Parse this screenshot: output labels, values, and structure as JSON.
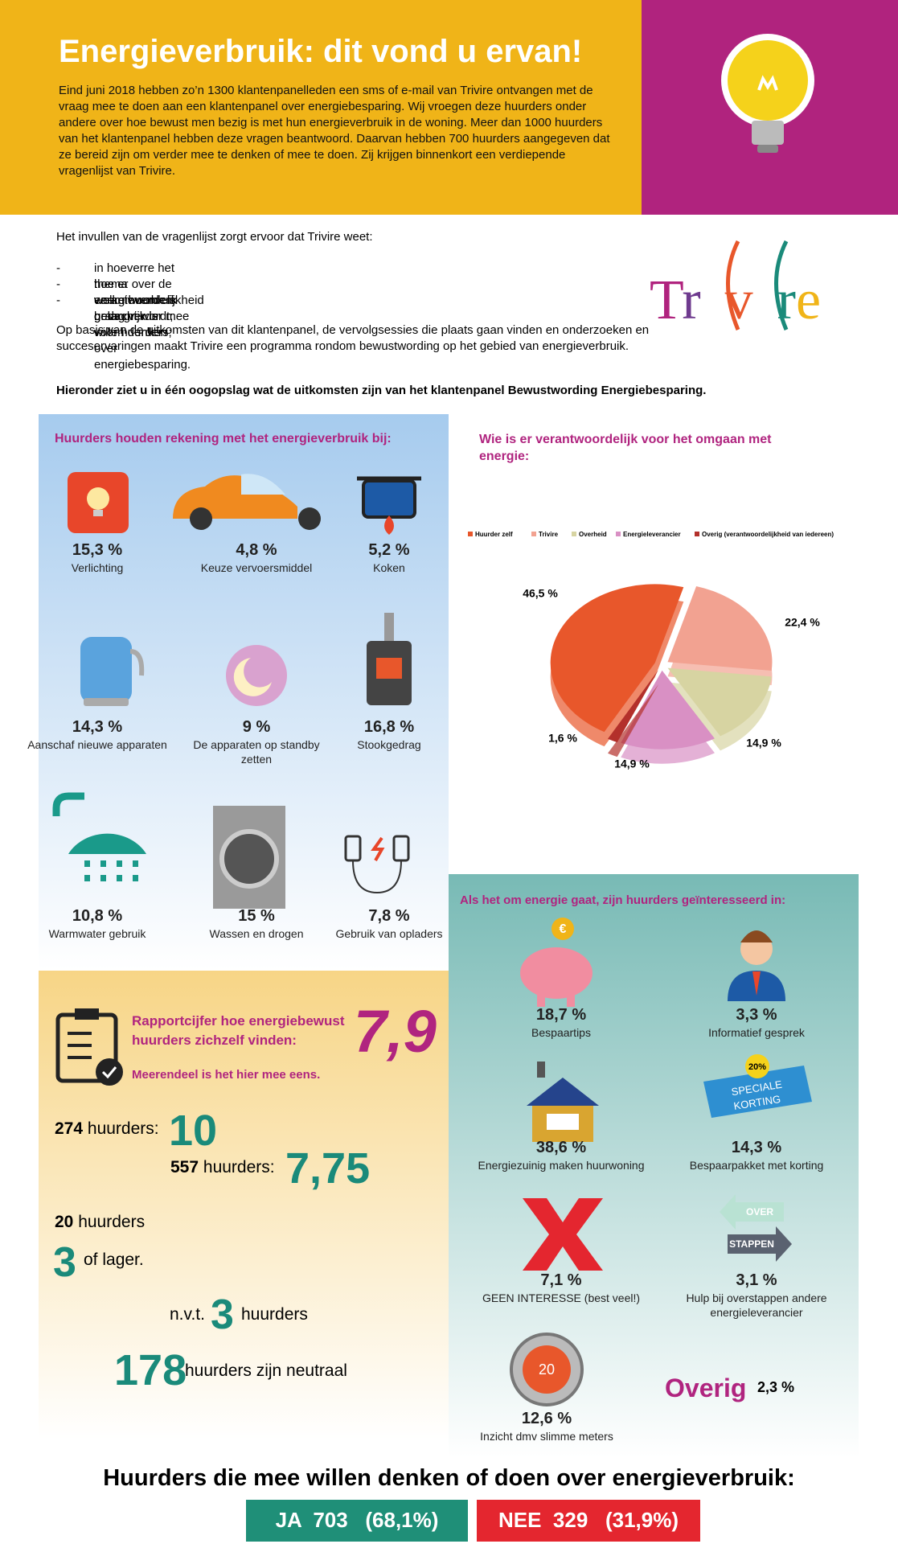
{
  "header": {
    "title": "Energieverbruik: dit vond u ervan!",
    "text": "Eind juni 2018 hebben zo’n 1300 klantenpanelleden een sms of e-mail van Trivire ontvangen met de vraag mee te doen aan een klantenpanel over energiebesparing. Wij vroegen deze huurders onder andere over hoe bewust men bezig is met hun energieverbruik in de woning. Meer dan 1000 huurders van het klantenpanel hebben deze vragen beantwoord. Daarvan hebben 700 huurders aangegeven dat ze bereid zijn om verder mee te denken of mee te doen. Zij krijgen binnenkort een verdiepende vragenlijst van Trivire."
  },
  "intro": {
    "lead": "Het invullen van de vragenlijst zorgt ervoor dat Trivire weet:",
    "bullets": [
      "in hoeverre het thema energieverbruik belangrijk is voor huurders;",
      "hoe er over de verantwoordelijkheid gedacht wordt;",
      "welke huurders graag verder mee willen denken over energiebesparing."
    ],
    "text": "Op basis van de uitkomsten van dit klantenpanel, de vervolgsessies die plaats gaan vinden en onderzoeken en succeservaringen maakt Trivire een programma rondom bewustwording op het gebied van energieverbruik.",
    "emphasis": "Hieronder ziet u in één oogopslag wat de uitkomsten zijn van het klantenpanel Bewustwording Energiebesparing."
  },
  "logo": [
    "T",
    "r",
    "v",
    "r",
    "e"
  ],
  "usage": {
    "title": "Huurders houden rekening met het energieverbruik bij:",
    "items": [
      {
        "value": "15,3 %",
        "label": "Verlichting"
      },
      {
        "value": "4,8 %",
        "label": "Keuze vervoersmiddel"
      },
      {
        "value": "5,2 %",
        "label": "Koken"
      },
      {
        "value": "14,3 %",
        "label": "Aanschaf nieuwe apparaten"
      },
      {
        "value": "9 %",
        "label": "De apparaten op standby zetten"
      },
      {
        "value": "16,8 %",
        "label": "Stookgedrag"
      },
      {
        "value": "10,8 %",
        "label": "Warmwater gebruik"
      },
      {
        "value": "15 %",
        "label": "Wassen en drogen"
      },
      {
        "value": "7,8 %",
        "label": "Gebruik van opladers"
      }
    ]
  },
  "chart_data": {
    "type": "pie",
    "title": "Wie is er verantwoordelijk voor het omgaan met energie:",
    "categories": [
      "Huurder zelf",
      "Trivire",
      "Overheid",
      "Energieleverancier",
      "Overig (verantwoordelijkheid van iedereen)"
    ],
    "values": [
      46.5,
      22.4,
      14.9,
      14.9,
      1.6
    ],
    "value_labels": [
      "46,5 %",
      "22,4 %",
      "14,9 %",
      "14,9 %",
      "1,6 %"
    ],
    "colors": [
      "#e8572b",
      "#f2a291",
      "#d7d4a2",
      "#d990c4",
      "#b3302b"
    ],
    "legend": "top"
  },
  "interests": {
    "title": "Als het om energie gaat, zijn huurders geïnteresseerd in:",
    "items": [
      {
        "value": "18,7 %",
        "label": "Bespaartips"
      },
      {
        "value": "3,3 %",
        "label": "Informatief gesprek"
      },
      {
        "value": "38,6 %",
        "label": "Energiezuinig maken huurwoning"
      },
      {
        "value": "14,3 %",
        "label": "Bespaarpakket met korting"
      },
      {
        "value": "7,1 %",
        "label": "GEEN INTERESSE (best veel!)"
      },
      {
        "value": "3,1 %",
        "label": "Hulp bij overstappen andere energieleverancier"
      },
      {
        "value": "12,6 %",
        "label": "Inzicht dmv slimme meters"
      }
    ],
    "other": {
      "label": "Overig",
      "value": "2,3 %"
    }
  },
  "icons": {
    "euro": "€",
    "discount": "20%",
    "banner1": "SPECIALE",
    "banner2": "KORTING",
    "over": "OVER",
    "switch": "STAPPEN",
    "thermostat": "20"
  },
  "rating": {
    "title": "Rapportcijfer hoe energiebewust huurders zichzelf vinden:",
    "score": "7,9",
    "note": "Meerendeel is het hier mee eens.",
    "r1a": "274",
    "r1b": "huurders:",
    "r1c": "10",
    "r2a": "557",
    "r2b": "huurders:",
    "r2c": "7,75",
    "r3a": "20",
    "r3b": "huurders",
    "r4a": "3",
    "r4b": "of lager.",
    "r5a": "n.v.t.",
    "r5b": "3",
    "r5c": "huurders",
    "r6a": "178",
    "r6b": "huurders zijn neutraal"
  },
  "footer": {
    "title": "Huurders die mee willen denken of doen over energieverbruik:",
    "yes": {
      "label": "JA",
      "count": "703",
      "pct": "(68,1%)"
    },
    "no": {
      "label": "NEE",
      "count": "329",
      "pct": "(31,9%)"
    }
  }
}
